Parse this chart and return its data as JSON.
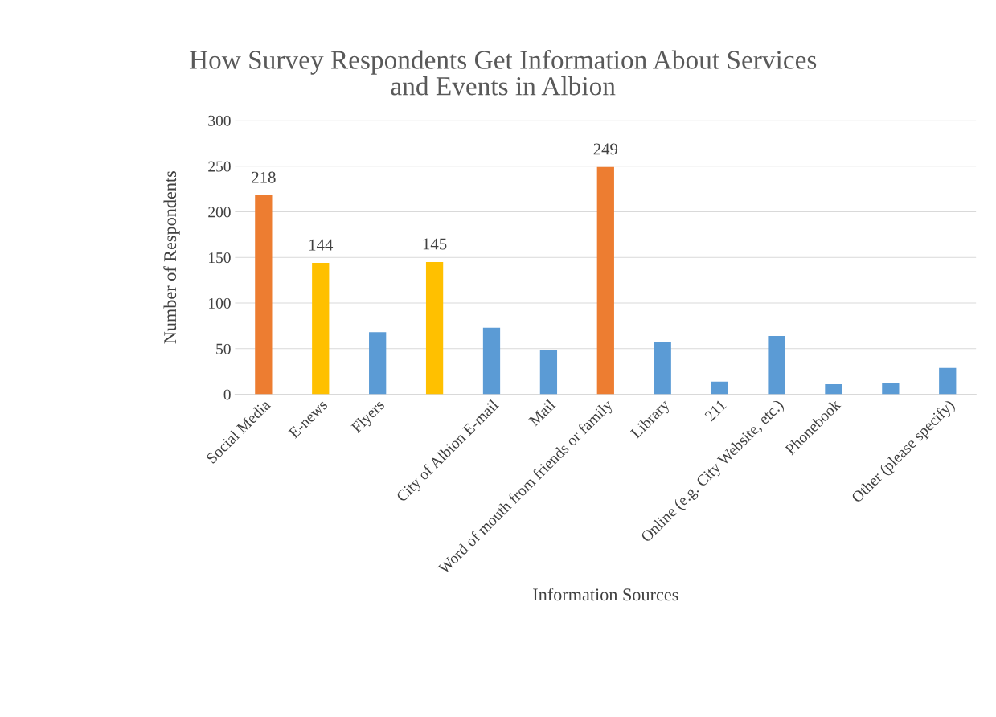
{
  "chart_data": {
    "type": "bar",
    "title": "How Survey Respondents Get Information About Services\nand Events in Albion",
    "xlabel": "Information Sources",
    "ylabel": "Number of Respondents",
    "categories": [
      "Social Media",
      "E-news",
      "Flyers",
      null,
      "City of Albion E-mail",
      "Mail",
      "Word of mouth from friends or family",
      "Library",
      "211",
      "Online (e.g. City Website, etc.)",
      "Phonebook",
      null,
      "Other (please specify)"
    ],
    "values": [
      218,
      144,
      68,
      145,
      73,
      49,
      249,
      57,
      14,
      64,
      11,
      12,
      29
    ],
    "colors": [
      "#ed7d31",
      "#ffc000",
      "#5b9bd5",
      "#ffc000",
      "#5b9bd5",
      "#5b9bd5",
      "#ed7d31",
      "#5b9bd5",
      "#5b9bd5",
      "#5b9bd5",
      "#5b9bd5",
      "#5b9bd5",
      "#5b9bd5"
    ],
    "value_labels": [
      "218",
      "144",
      null,
      "145",
      null,
      null,
      "249",
      null,
      null,
      null,
      null,
      null,
      null
    ],
    "ylim": [
      0,
      300
    ],
    "yticks": [
      0,
      50,
      100,
      150,
      200,
      250,
      300
    ],
    "grid": "y"
  }
}
